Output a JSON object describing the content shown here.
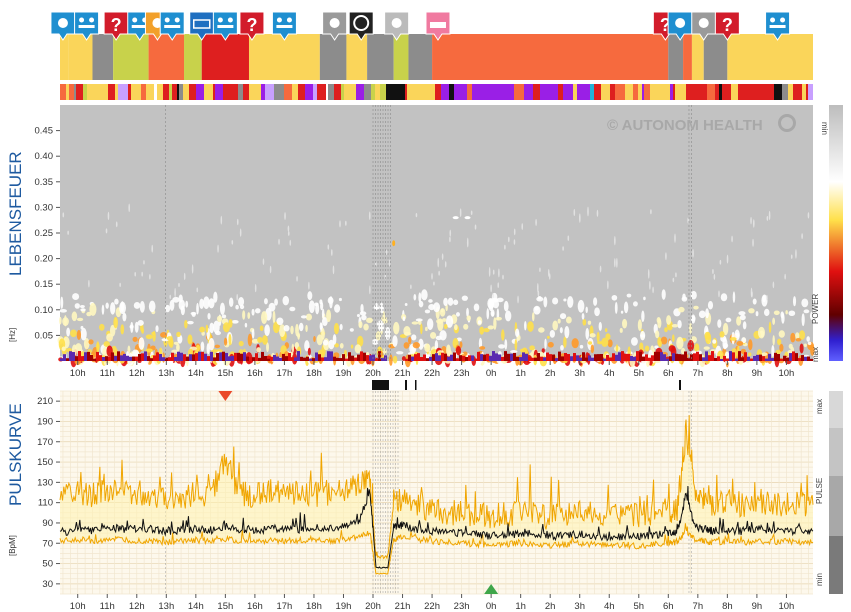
{
  "top_strip": {
    "activity_icons": [
      "gear-icon",
      "meeting-icon",
      "question-icon",
      "meeting-icon",
      "food-icon",
      "meeting-icon",
      "keyboard-icon",
      "meeting-icon",
      "question-icon",
      "meeting-icon",
      "cigarette-icon",
      "no-smoking-icon",
      "screen-icon",
      "bed-icon",
      "question-icon",
      "gear-icon",
      "cigarette-icon",
      "question-icon",
      "meeting-icon"
    ],
    "colors": {
      "yellow": "#fad55a",
      "grey": "#8c8c8c",
      "lime": "#c8d24b",
      "orange": "#f66a3e",
      "red": "#de1f1f",
      "black": "#111111"
    }
  },
  "watermark": "© AUTONOM HEALTH",
  "spectrogram": {
    "label": "LEBENSFEUER",
    "unit": "[Hz]",
    "colorbar": {
      "min_label": "min",
      "mid_label": "POWER",
      "max_label": "max"
    }
  },
  "pulse": {
    "label": "PULSKURVE",
    "unit": "[BpM]",
    "colorbar": {
      "max_label": "max",
      "mid_label": "PULSE",
      "min_label": "min"
    }
  },
  "chart_data": [
    {
      "type": "heatmap",
      "title": "LEBENSFEUER",
      "ylabel": "[Hz]",
      "y_ticks": [
        0.05,
        0.1,
        0.15,
        0.2,
        0.25,
        0.3,
        0.35,
        0.4,
        0.45
      ],
      "ylim": [
        0,
        0.5
      ],
      "x_ticks": [
        "10h",
        "11h",
        "12h",
        "13h",
        "14h",
        "15h",
        "16h",
        "17h",
        "18h",
        "19h",
        "20h",
        "21h",
        "22h",
        "23h",
        "0h",
        "1h",
        "2h",
        "3h",
        "4h",
        "5h",
        "6h",
        "7h",
        "8h",
        "9h",
        "10h"
      ],
      "x_tick_hours": [
        10,
        11,
        12,
        13,
        14,
        15,
        16,
        17,
        18,
        19,
        20,
        21,
        22,
        23,
        24,
        25,
        26,
        27,
        28,
        29,
        30,
        31,
        32,
        33,
        34
      ],
      "x_range_hours": [
        9.4,
        34.9
      ],
      "grid": true
    },
    {
      "type": "line",
      "title": "PULSKURVE",
      "ylabel": "[BpM]",
      "y_ticks": [
        30,
        50,
        70,
        90,
        110,
        130,
        150,
        170,
        190,
        210
      ],
      "ylim": [
        20,
        220
      ],
      "x_ticks": [
        "10h",
        "11h",
        "12h",
        "13h",
        "14h",
        "15h",
        "16h",
        "17h",
        "18h",
        "19h",
        "20h",
        "21h",
        "22h",
        "23h",
        "0h",
        "1h",
        "2h",
        "3h",
        "4h",
        "5h",
        "6h",
        "7h",
        "8h",
        "9h",
        "10h"
      ],
      "x": [
        9.4,
        10,
        10.5,
        11,
        11.5,
        12,
        12.5,
        13,
        13.5,
        14,
        14.5,
        15,
        15.5,
        16,
        16.5,
        17,
        17.5,
        18,
        18.5,
        19,
        19.5,
        19.9,
        20.1,
        20.5,
        20.7,
        21,
        21.5,
        22,
        22.5,
        23,
        23.5,
        24,
        24.5,
        25,
        25.5,
        26,
        26.5,
        27,
        27.5,
        28,
        28.5,
        29,
        29.5,
        30,
        30.3,
        30.6,
        30.9,
        31.2,
        31.5,
        32,
        32.5,
        33,
        33.5,
        34,
        34.5,
        34.9
      ],
      "series": [
        {
          "values": [
            80,
            84,
            83,
            86,
            84,
            85,
            84,
            82,
            83,
            84,
            83,
            86,
            84,
            83,
            84,
            85,
            84,
            85,
            84,
            86,
            90,
            122,
            46,
            46,
            86,
            88,
            84,
            82,
            80,
            80,
            79,
            77,
            78,
            80,
            79,
            77,
            78,
            79,
            78,
            76,
            77,
            76,
            78,
            79,
            80,
            118,
            86,
            84,
            82,
            83,
            82,
            84,
            83,
            82,
            83,
            82
          ]
        },
        {
          "values": [
            118,
            122,
            116,
            124,
            118,
            120,
            117,
            115,
            116,
            118,
            120,
            150,
            120,
            118,
            120,
            122,
            120,
            118,
            120,
            124,
            128,
            130,
            56,
            56,
            110,
            112,
            108,
            104,
            100,
            100,
            98,
            96,
            98,
            100,
            98,
            96,
            98,
            100,
            98,
            96,
            98,
            96,
            100,
            102,
            104,
            180,
            118,
            112,
            110,
            112,
            108,
            112,
            110,
            108,
            110,
            108
          ]
        },
        {
          "values": [
            72,
            74,
            72,
            74,
            73,
            72,
            72,
            71,
            72,
            72,
            73,
            74,
            72,
            72,
            73,
            72,
            73,
            73,
            72,
            73,
            76,
            80,
            40,
            40,
            74,
            76,
            74,
            72,
            71,
            70,
            69,
            68,
            69,
            70,
            69,
            68,
            69,
            70,
            69,
            68,
            68,
            67,
            69,
            70,
            71,
            82,
            74,
            72,
            71,
            72,
            71,
            72,
            71,
            72,
            71,
            71
          ]
        }
      ],
      "markers": {
        "max_hour": 15,
        "min_hour": 24
      },
      "grid": true
    }
  ]
}
